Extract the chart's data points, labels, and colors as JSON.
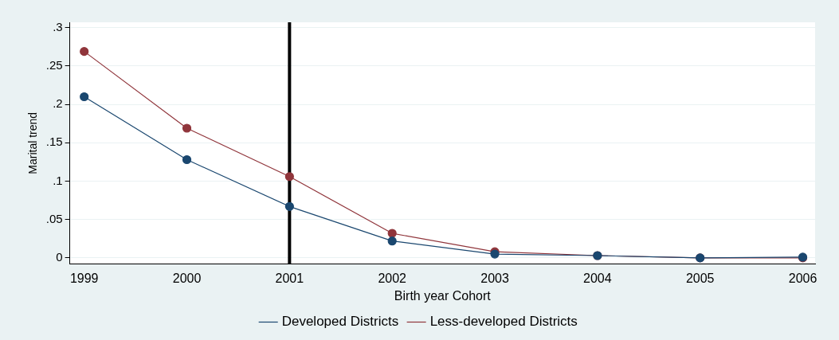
{
  "chart_data": {
    "type": "line",
    "xlabel": "Birth year Cohort",
    "ylabel": "Marital trend",
    "x": [
      1999,
      2000,
      2001,
      2002,
      2003,
      2004,
      2005,
      2006
    ],
    "series": [
      {
        "name": "Developed Districts",
        "color": "#1a476f",
        "values": [
          0.21,
          0.128,
          0.067,
          0.022,
          0.005,
          0.003,
          0,
          0.001
        ]
      },
      {
        "name": "Less-developed Districts",
        "color": "#90353b",
        "values": [
          0.269,
          0.169,
          0.106,
          0.032,
          0.008,
          0.003,
          0,
          0
        ]
      }
    ],
    "xlim": [
      1998.86,
      2006.12
    ],
    "xticks": [
      1999,
      2000,
      2001,
      2002,
      2003,
      2004,
      2005,
      2006
    ],
    "ylim": [
      -0.008,
      0.307
    ],
    "yticks": [
      {
        "value": 0,
        "label": "0"
      },
      {
        "value": 0.05,
        "label": ".05"
      },
      {
        "value": 0.1,
        "label": ".1"
      },
      {
        "value": 0.15,
        "label": ".15"
      },
      {
        "value": 0.2,
        "label": ".2"
      },
      {
        "value": 0.25,
        "label": ".25"
      },
      {
        "value": 0.3,
        "label": ".3"
      }
    ],
    "ref_lines": [
      {
        "axis": "x",
        "value": 2001,
        "color": "#000000"
      }
    ],
    "grid": "y",
    "legend": "bottom",
    "marker": "circle",
    "line_style": "solid"
  }
}
